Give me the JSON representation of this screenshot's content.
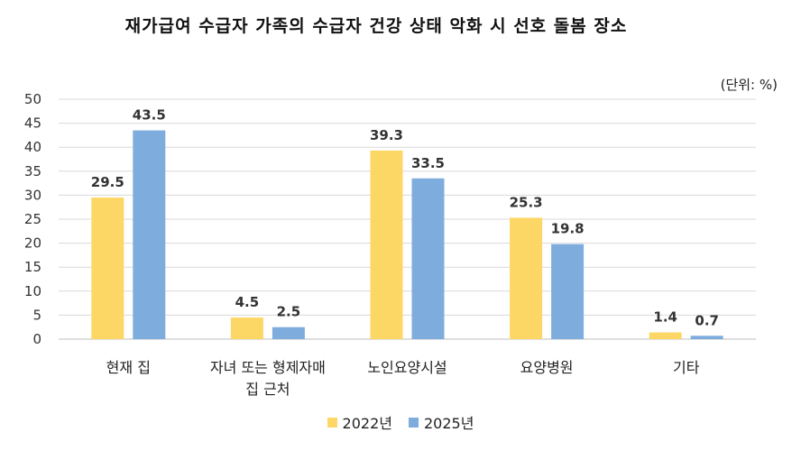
{
  "chart_data": {
    "type": "bar",
    "title": "재가급여 수급자 가족의 수급자 건강 상태 악화 시 선호 돌봄 장소",
    "unit": "(단위: %)",
    "categories": [
      [
        "현재 집"
      ],
      [
        "자녀 또는 형제자매",
        "집 근처"
      ],
      [
        "노인요양시설"
      ],
      [
        "요양병원"
      ],
      [
        "기타"
      ]
    ],
    "series": [
      {
        "name": "2022년",
        "color": "#FDD765",
        "values": [
          29.5,
          4.5,
          39.3,
          25.3,
          1.4
        ]
      },
      {
        "name": "2025년",
        "color": "#7EADDD",
        "values": [
          43.5,
          2.5,
          33.5,
          19.8,
          0.7
        ]
      }
    ],
    "ylim": [
      0,
      50
    ],
    "yticks": [
      0,
      5,
      10,
      15,
      20,
      25,
      30,
      35,
      40,
      45,
      50
    ],
    "grid": true,
    "legend_position": "bottom"
  }
}
